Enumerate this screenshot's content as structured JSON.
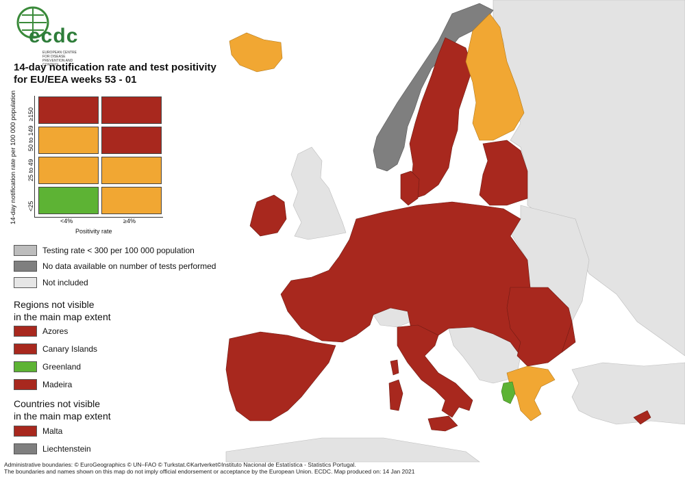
{
  "logo": {
    "wordmark": "ecdc",
    "org": "EUROPEAN CENTRE FOR DISEASE PREVENTION AND CONTROL"
  },
  "title": {
    "line1": "14-day notification rate and test positivity",
    "line2": "for EU/EEA weeks 53 - 01"
  },
  "matrix": {
    "y_axis_label": "14-day notification rate per 100 000 population",
    "x_axis_label": "Positivity rate",
    "rows": [
      "≥150",
      "50 to 149",
      "25 to 49",
      "<25"
    ],
    "cols": [
      "<4%",
      "≥4%"
    ],
    "colors": [
      [
        "#a8281e",
        "#a8281e"
      ],
      [
        "#f1a733",
        "#a8281e"
      ],
      [
        "#f1a733",
        "#f1a733"
      ],
      [
        "#5db334",
        "#f1a733"
      ]
    ]
  },
  "legend": {
    "testing_rate": "Testing rate < 300 per 100 000 population",
    "no_data": "No data available on number of tests performed",
    "not_included": "Not included",
    "colors": {
      "testing": "#bdbdbd",
      "no_data": "#7f7f7f",
      "not_included": "#e6e6e6"
    }
  },
  "regions": {
    "heading1": "Regions not visible",
    "heading2": "in the main map extent",
    "items": [
      {
        "label": "Azores",
        "color": "#a8281e"
      },
      {
        "label": "Canary Islands",
        "color": "#a8281e"
      },
      {
        "label": "Greenland",
        "color": "#5db334"
      },
      {
        "label": "Madeira",
        "color": "#a8281e"
      }
    ]
  },
  "countries": {
    "heading1": "Countries not visible",
    "heading2": "in the main map extent",
    "items": [
      {
        "label": "Malta",
        "color": "#a8281e"
      },
      {
        "label": "Liechtenstein",
        "color": "#7f7f7f"
      }
    ]
  },
  "footer": {
    "line1": "Administrative boundaries: © EuroGeographics © UN–FAO © Turkstat.©Kartverket©Instituto Nacional de Estatística - Statistics Portugal.",
    "line2": "The boundaries and names shown on this map do not imply official endorsement or acceptance by the European Union. ECDC. Map produced on: 14 Jan 2021"
  },
  "map_colors": {
    "red": "#a8281e",
    "orange": "#f1a733",
    "green": "#5db334",
    "grey": "#7f7f7f",
    "light": "#e3e3e3",
    "sea": "#ffffff"
  }
}
